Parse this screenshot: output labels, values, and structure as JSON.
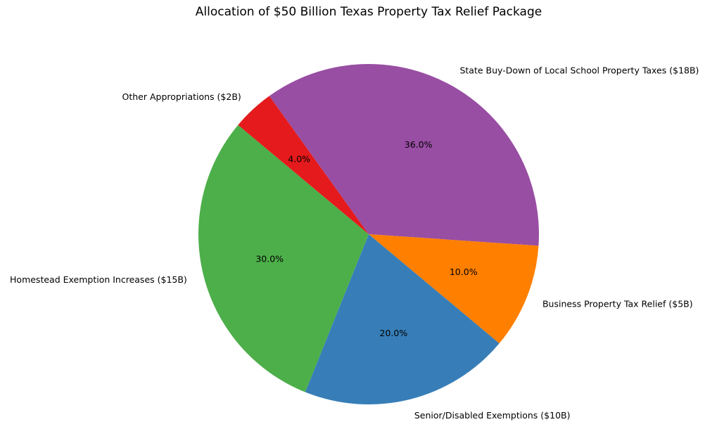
{
  "chart_data": {
    "type": "pie",
    "title": "Allocation of $50 Billion Texas Property Tax Relief Package",
    "slices": [
      {
        "label": "State Buy-Down of Local School Property Taxes ($18B)",
        "value": 18,
        "percent_label": "36.0%",
        "color": "#984ea3"
      },
      {
        "label": "Business Property Tax Relief ($5B)",
        "value": 5,
        "percent_label": "10.0%",
        "color": "#ff7f00"
      },
      {
        "label": "Senior/Disabled Exemptions ($10B)",
        "value": 10,
        "percent_label": "20.0%",
        "color": "#377eb8"
      },
      {
        "label": "Homestead Exemption Increases ($15B)",
        "value": 15,
        "percent_label": "30.0%",
        "color": "#4daf4a"
      },
      {
        "label": "Other Appropriations ($2B)",
        "value": 2,
        "percent_label": "4.0%",
        "color": "#e41a1c"
      }
    ],
    "direction": "clockwise"
  }
}
